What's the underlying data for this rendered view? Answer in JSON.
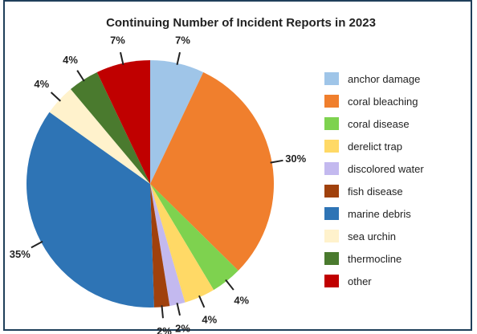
{
  "chart_data": {
    "type": "pie",
    "title": "Continuing Number of Incident Reports in 2023",
    "series": [
      {
        "name": "anchor damage",
        "value": 7,
        "label": "7%",
        "color": "#9fc5e8"
      },
      {
        "name": "coral bleaching",
        "value": 30,
        "label": "30%",
        "color": "#f07f2d"
      },
      {
        "name": "coral disease",
        "value": 4,
        "label": "4%",
        "color": "#7ed24f"
      },
      {
        "name": "derelict trap",
        "value": 4,
        "label": "4%",
        "color": "#ffd966"
      },
      {
        "name": "discolored water",
        "value": 2,
        "label": "2%",
        "color": "#c3b9ef"
      },
      {
        "name": "fish disease",
        "value": 2,
        "label": "2%",
        "color": "#a0410d"
      },
      {
        "name": "marine debris",
        "value": 35,
        "label": "35%",
        "color": "#2e74b5"
      },
      {
        "name": "sea urchin",
        "value": 4,
        "label": "4%",
        "color": "#fff2cc"
      },
      {
        "name": "thermocline",
        "value": 4,
        "label": "4%",
        "color": "#4a7a2e"
      },
      {
        "name": "other",
        "value": 7,
        "label": "7%",
        "color": "#c00000"
      }
    ],
    "legend_position": "right"
  }
}
